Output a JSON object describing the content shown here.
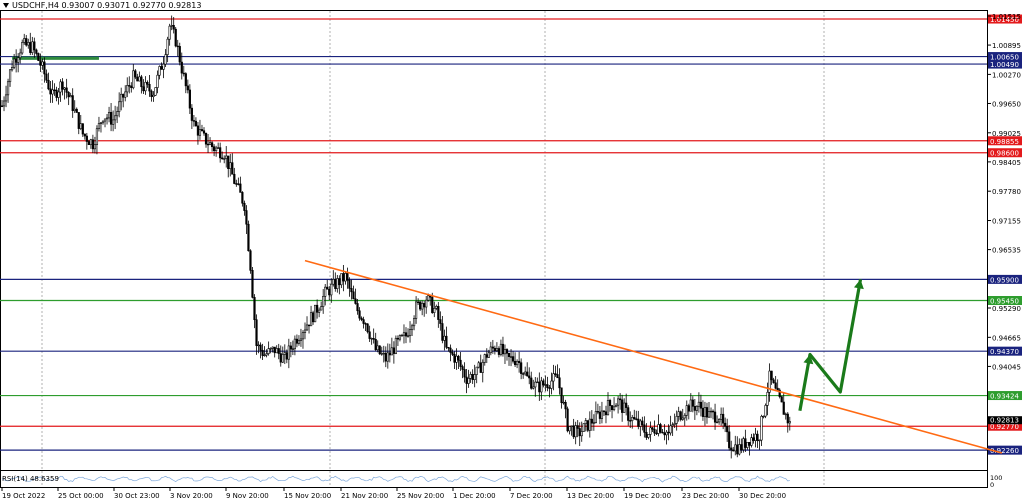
{
  "header": {
    "title": "USDCHF,H4  0.93007 0.93071 0.92770 0.92813"
  },
  "rsi": {
    "label": "RSI(14) 48.6359",
    "scale_labels": [
      "100",
      "0"
    ]
  },
  "colors": {
    "red_line": "#e31a1c",
    "blue_line": "#1a237e",
    "green_line": "#2e9d2e",
    "trendline": "#ff6a13",
    "arrow": "#1a7a1a",
    "candle": "#000000",
    "grid": "#b0b0b0"
  },
  "chart_data": {
    "type": "candlestick",
    "symbol": "USDCHF",
    "timeframe": "H4",
    "ylim": [
      0.9205,
      1.016
    ],
    "y_ticks": [
      "1.01515",
      "1.00895",
      "1.00270",
      "0.99650",
      "0.99025",
      "0.98405",
      "0.97780",
      "0.97155",
      "0.96535",
      "0.95290",
      "0.94665",
      "0.94045",
      "0.92813"
    ],
    "x_ticks": [
      "19 Oct 2022",
      "25 Oct 00:00",
      "30 Oct 23:00",
      "3 Nov 20:00",
      "9 Nov 20:00",
      "15 Nov 20:00",
      "21 Nov 20:00",
      "25 Nov 20:00",
      "1 Dec 20:00",
      "7 Dec 20:00",
      "13 Dec 20:00",
      "19 Dec 20:00",
      "23 Dec 20:00",
      "30 Dec 20:00"
    ],
    "price_path": [
      [
        0,
        0.996
      ],
      [
        5,
        1.005
      ],
      [
        10,
        1.009
      ],
      [
        15,
        1.0085
      ],
      [
        20,
        1.004
      ],
      [
        25,
        0.998
      ],
      [
        30,
        1.001
      ],
      [
        35,
        0.996
      ],
      [
        40,
        0.99
      ],
      [
        45,
        0.988
      ],
      [
        50,
        0.994
      ],
      [
        55,
        0.993
      ],
      [
        60,
        0.998
      ],
      [
        65,
        1.002
      ],
      [
        70,
        1.0
      ],
      [
        75,
        0.999
      ],
      [
        80,
        1.006
      ],
      [
        83,
        1.013
      ],
      [
        86,
        1.01
      ],
      [
        90,
        1.002
      ],
      [
        95,
        0.992
      ],
      [
        100,
        0.989
      ],
      [
        105,
        0.987
      ],
      [
        110,
        0.986
      ],
      [
        115,
        0.98
      ],
      [
        120,
        0.975
      ],
      [
        123,
        0.962
      ],
      [
        126,
        0.945
      ],
      [
        130,
        0.943
      ],
      [
        135,
        0.944
      ],
      [
        140,
        0.942
      ],
      [
        145,
        0.946
      ],
      [
        150,
        0.949
      ],
      [
        155,
        0.952
      ],
      [
        160,
        0.956
      ],
      [
        165,
        0.958
      ],
      [
        170,
        0.9595
      ],
      [
        175,
        0.953
      ],
      [
        180,
        0.95
      ],
      [
        185,
        0.944
      ],
      [
        190,
        0.942
      ],
      [
        195,
        0.945
      ],
      [
        200,
        0.947
      ],
      [
        205,
        0.953
      ],
      [
        210,
        0.955
      ],
      [
        215,
        0.952
      ],
      [
        220,
        0.944
      ],
      [
        225,
        0.942
      ],
      [
        230,
        0.938
      ],
      [
        235,
        0.939
      ],
      [
        240,
        0.943
      ],
      [
        245,
        0.945
      ],
      [
        250,
        0.942
      ],
      [
        255,
        0.942
      ],
      [
        260,
        0.938
      ],
      [
        265,
        0.936
      ],
      [
        270,
        0.937
      ],
      [
        275,
        0.938
      ],
      [
        280,
        0.928
      ],
      [
        285,
        0.926
      ],
      [
        290,
        0.928
      ],
      [
        295,
        0.93
      ],
      [
        300,
        0.932
      ],
      [
        305,
        0.933
      ],
      [
        310,
        0.93
      ],
      [
        315,
        0.928
      ],
      [
        320,
        0.926
      ],
      [
        325,
        0.928
      ],
      [
        330,
        0.926
      ],
      [
        335,
        0.93
      ],
      [
        340,
        0.932
      ],
      [
        345,
        0.932
      ],
      [
        350,
        0.93
      ],
      [
        355,
        0.93
      ],
      [
        360,
        0.924
      ],
      [
        365,
        0.923
      ],
      [
        370,
        0.925
      ],
      [
        375,
        0.926
      ],
      [
        380,
        0.938
      ],
      [
        385,
        0.933
      ],
      [
        390,
        0.9281
      ]
    ],
    "horizontal_levels": [
      {
        "value": 1.0145,
        "label": "1.01450",
        "color": "red"
      },
      {
        "value": 1.0065,
        "label": "1.00650",
        "color": "blue"
      },
      {
        "value": 1.0049,
        "label": "1.00490",
        "color": "blue"
      },
      {
        "value": 0.98855,
        "label": "0.98855",
        "color": "red"
      },
      {
        "value": 0.986,
        "label": "0.98600",
        "color": "red"
      },
      {
        "value": 0.959,
        "label": "0.95900",
        "color": "blue"
      },
      {
        "value": 0.9545,
        "label": "0.95450",
        "color": "green"
      },
      {
        "value": 0.9437,
        "label": "0.94370",
        "color": "blue"
      },
      {
        "value": 0.93424,
        "label": "0.93424",
        "color": "green"
      },
      {
        "value": 0.9277,
        "label": "0.92770",
        "color": "red"
      },
      {
        "value": 0.9226,
        "label": "0.92260",
        "color": "blue"
      }
    ],
    "trendline": {
      "from": [
        150,
        0.963
      ],
      "to": [
        495,
        0.922
      ]
    },
    "projection_arrow": [
      [
        395,
        0.931
      ],
      [
        400,
        0.943
      ],
      [
        415,
        0.935
      ],
      [
        425,
        0.959
      ]
    ],
    "green_zone": {
      "x_from": 5,
      "x_to": 48,
      "y_from": 1.0065,
      "y_to": 1.0058
    }
  }
}
